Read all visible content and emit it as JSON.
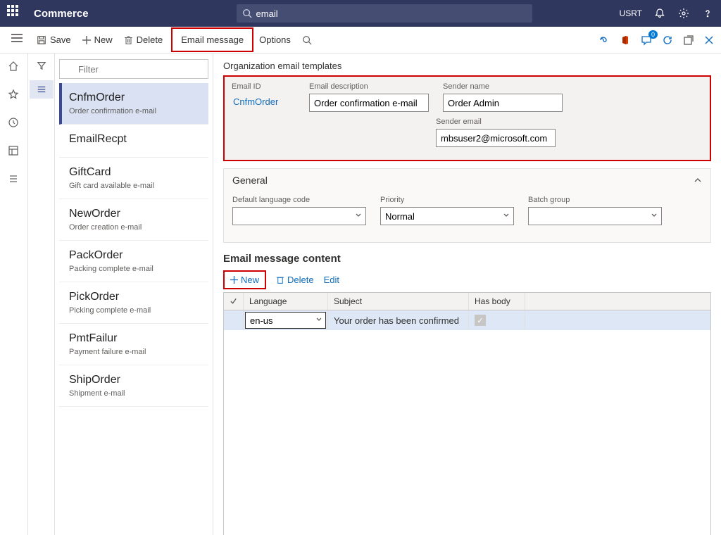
{
  "header": {
    "app_name": "Commerce",
    "search_value": "email",
    "user": "USRT"
  },
  "actions": {
    "save": "Save",
    "new": "New",
    "delete": "Delete",
    "email_message": "Email message",
    "options": "Options"
  },
  "page_title": "Organization email templates",
  "filter_placeholder": "Filter",
  "templates": [
    {
      "id": "CnfmOrder",
      "desc": "Order confirmation e-mail",
      "selected": true
    },
    {
      "id": "EmailRecpt",
      "desc": ""
    },
    {
      "id": "GiftCard",
      "desc": "Gift card available e-mail"
    },
    {
      "id": "NewOrder",
      "desc": "Order creation e-mail"
    },
    {
      "id": "PackOrder",
      "desc": "Packing complete e-mail"
    },
    {
      "id": "PickOrder",
      "desc": "Picking complete e-mail"
    },
    {
      "id": "PmtFailur",
      "desc": "Payment failure e-mail"
    },
    {
      "id": "ShipOrder",
      "desc": "Shipment e-mail"
    }
  ],
  "form": {
    "email_id_label": "Email ID",
    "email_id_value": "CnfmOrder",
    "email_desc_label": "Email description",
    "email_desc_value": "Order confirmation e-mail",
    "sender_name_label": "Sender name",
    "sender_name_value": "Order Admin",
    "sender_email_label": "Sender email",
    "sender_email_value": "mbsuser2@microsoft.com"
  },
  "general": {
    "title": "General",
    "lang_label": "Default language code",
    "lang_value": "",
    "priority_label": "Priority",
    "priority_value": "Normal",
    "batch_label": "Batch group",
    "batch_value": ""
  },
  "content": {
    "title": "Email message content",
    "new": "New",
    "delete": "Delete",
    "edit": "Edit",
    "cols": {
      "language": "Language",
      "subject": "Subject",
      "has_body": "Has body"
    },
    "rows": [
      {
        "language": "en-us",
        "subject": "Your order has been confirmed",
        "has_body": true
      }
    ]
  },
  "colors": {
    "header_bg": "#30375e",
    "accent": "#0f6cbd",
    "highlight": "#c00",
    "selected_row": "#dde7f5",
    "selected_item": "#d9e1f2"
  }
}
